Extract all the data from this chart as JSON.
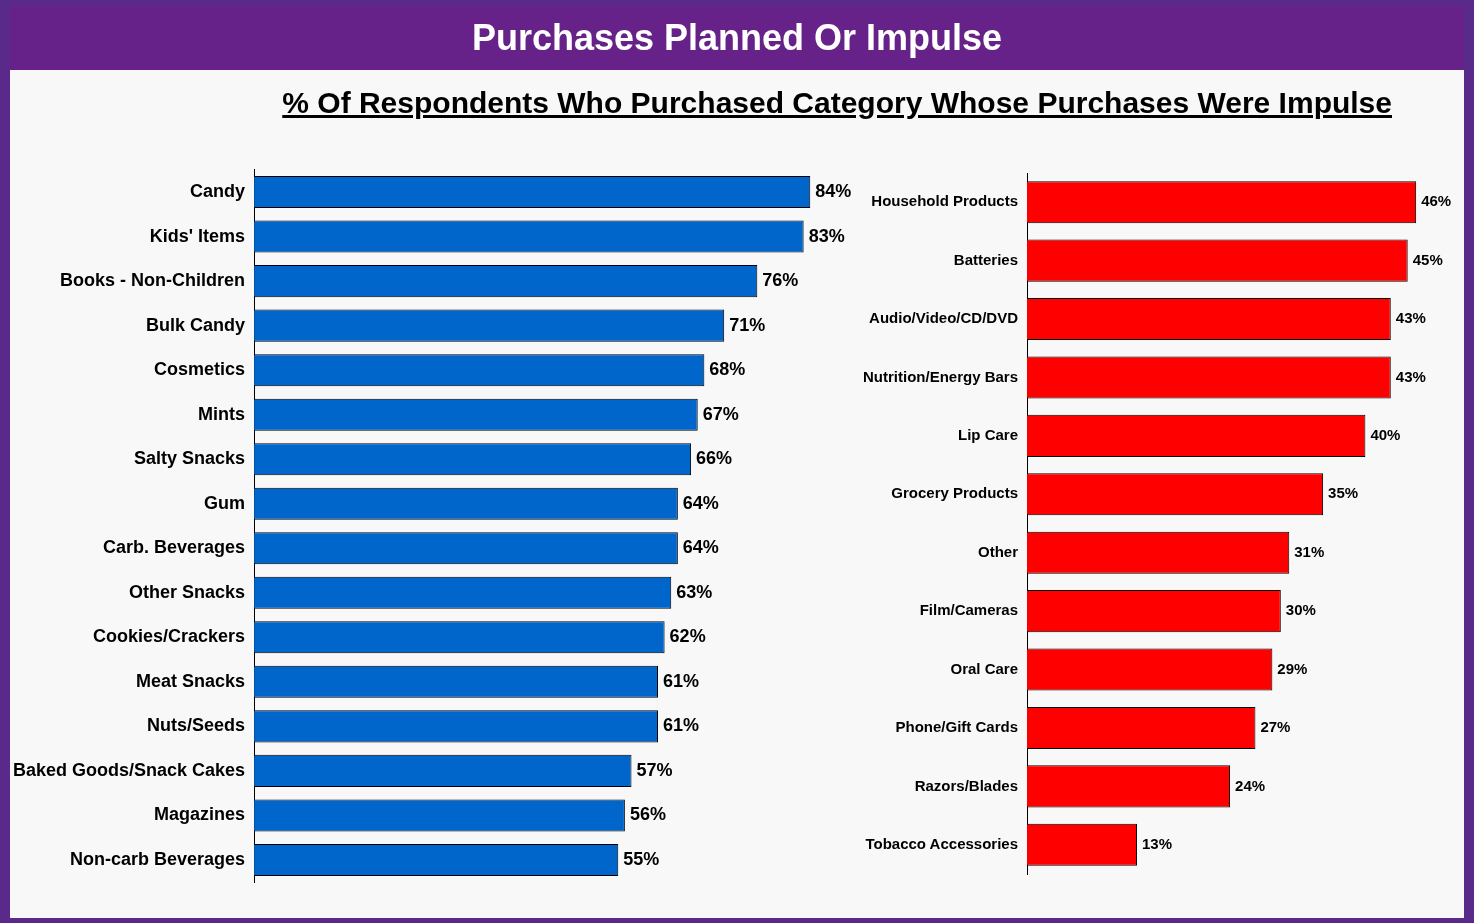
{
  "chart_data": [
    {
      "type": "bar",
      "orientation": "horizontal",
      "title": "Purchases Planned Or Impulse",
      "subtitle": "% Of Respondents Who Purchased Category Whose Purchases Were Impulse",
      "categories": [
        "Candy",
        "Kids' Items",
        "Books - Non-Children",
        "Bulk Candy",
        "Cosmetics",
        "Mints",
        "Salty Snacks",
        "Gum",
        "Carb. Beverages",
        "Other Snacks",
        "Cookies/Crackers",
        "Meat Snacks",
        "Nuts/Seeds",
        "Baked Goods/Snack Cakes",
        "Magazines",
        "Non-carb Beverages"
      ],
      "values": [
        84,
        83,
        76,
        71,
        68,
        67,
        66,
        64,
        64,
        63,
        62,
        61,
        61,
        57,
        56,
        55
      ],
      "value_labels": [
        "84%",
        "83%",
        "76%",
        "71%",
        "68%",
        "67%",
        "66%",
        "64%",
        "64%",
        "63%",
        "62%",
        "61%",
        "61%",
        "57%",
        "56%",
        "55%"
      ],
      "color": "#0066cc",
      "tick_labels": "y",
      "legend": false
    },
    {
      "type": "bar",
      "orientation": "horizontal",
      "categories": [
        "Household Products",
        "Batteries",
        "Audio/Video/CD/DVD",
        "Nutrition/Energy Bars",
        "Lip Care",
        "Grocery Products",
        "Other",
        "Film/Cameras",
        "Oral Care",
        "Phone/Gift Cards",
        "Razors/Blades",
        "Tobacco Accessories"
      ],
      "values": [
        46,
        45,
        43,
        43,
        40,
        35,
        31,
        30,
        29,
        27,
        24,
        13
      ],
      "value_labels": [
        "46%",
        "45%",
        "43%",
        "43%",
        "40%",
        "35%",
        "31%",
        "30%",
        "29%",
        "27%",
        "24%",
        "13%"
      ],
      "color": "#ff0000",
      "tick_labels": "y",
      "legend": false
    }
  ]
}
